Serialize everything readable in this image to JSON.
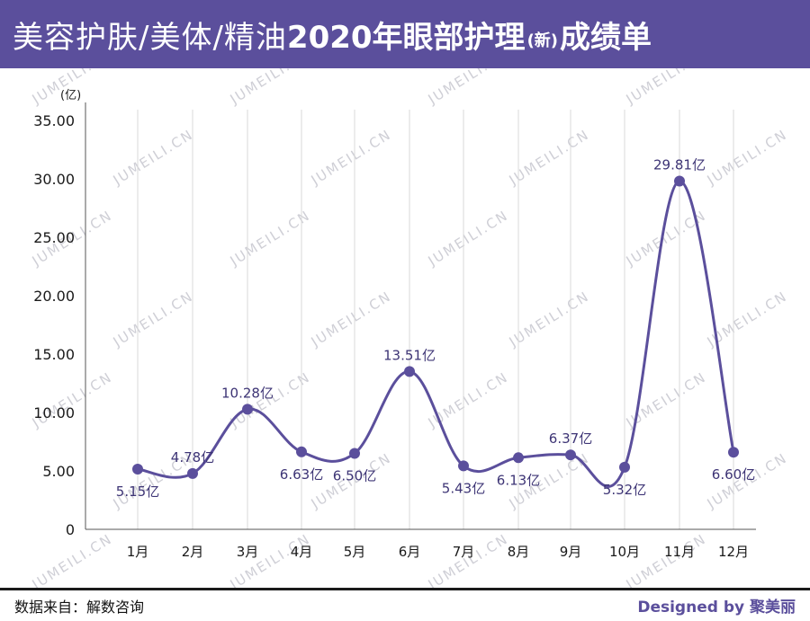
{
  "header": {
    "title_part1": "美容护肤/美体/精油",
    "title_part2": "2020年眼部护理",
    "title_new": "(新)",
    "title_part3": "成绩单"
  },
  "watermark_text": "JUMEILI.CN",
  "colors": {
    "accent": "#5b4f9c",
    "line": "#5b4f9c",
    "label": "#3d3475"
  },
  "chart_data": {
    "type": "line",
    "unit": "(亿)",
    "categories": [
      "1月",
      "2月",
      "3月",
      "4月",
      "5月",
      "6月",
      "7月",
      "8月",
      "9月",
      "10月",
      "11月",
      "12月"
    ],
    "series": [
      {
        "values": [
          5.15,
          4.78,
          10.28,
          6.63,
          6.5,
          13.51,
          5.43,
          6.13,
          6.37,
          5.32,
          29.81,
          6.6
        ]
      }
    ],
    "data_labels": [
      "5.15亿",
      "4.78亿",
      "10.28亿",
      "6.63亿",
      "6.50亿",
      "13.51亿",
      "5.43亿",
      "6.13亿",
      "6.37亿",
      "5.32亿",
      "29.81亿",
      "6.60亿"
    ],
    "yticks": [
      "0",
      "5.00",
      "10.00",
      "15.00",
      "20.00",
      "25.00",
      "30.00",
      "35.00"
    ],
    "ylim": [
      0,
      35
    ],
    "grid": "vertical",
    "smooth": true
  },
  "footer": {
    "source": "数据来自：解数咨询",
    "designed_prefix": "Designed by ",
    "designed_brand": "聚美丽"
  }
}
